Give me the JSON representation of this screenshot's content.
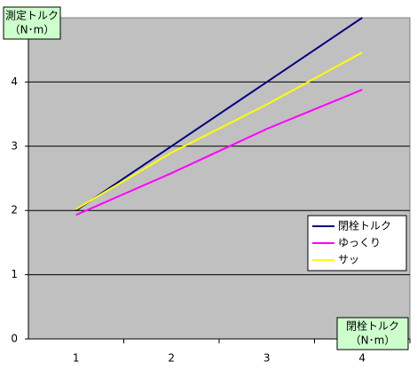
{
  "chart_data": {
    "type": "line",
    "ylabel": [
      "測定トルク",
      "（N･m）"
    ],
    "xlabel": [
      "閉栓トルク",
      "（N･m）"
    ],
    "categories": [
      "1",
      "2",
      "3",
      "4"
    ],
    "series": [
      {
        "name": "閉栓トルク",
        "color": "#000080",
        "values": [
          2,
          3,
          4,
          5
        ]
      },
      {
        "name": "ゆっくり",
        "color": "#ff00ff",
        "values": [
          1.93,
          2.58,
          3.27,
          3.88
        ]
      },
      {
        "name": "サッ",
        "color": "#ffff00",
        "values": [
          2.02,
          2.9,
          3.65,
          4.46
        ]
      }
    ],
    "ylim": [
      0,
      5
    ],
    "yticks": [
      0,
      1,
      2,
      3,
      4
    ],
    "grid": true,
    "legend": "right"
  }
}
